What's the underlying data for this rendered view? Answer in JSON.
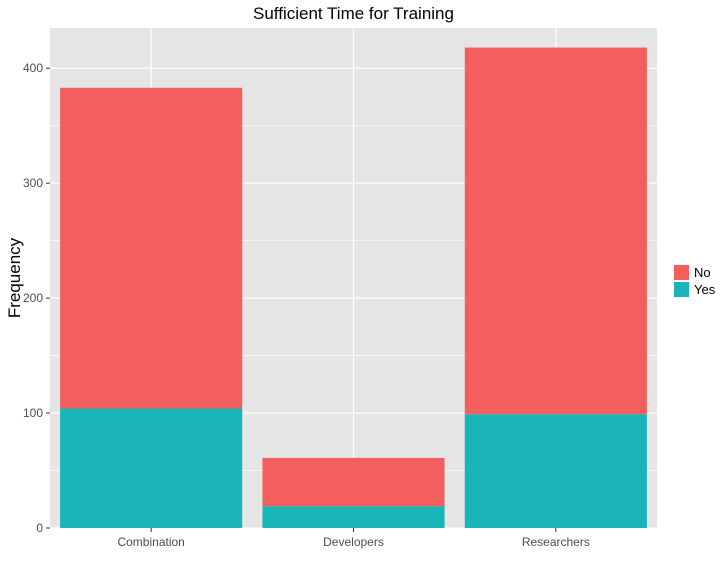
{
  "chart_data": {
    "type": "bar",
    "stacked": true,
    "title": "Sufficient Time for Training",
    "xlabel": "",
    "ylabel": "Frequency",
    "categories": [
      "Combination",
      "Developers",
      "Researchers"
    ],
    "series": [
      {
        "name": "Yes",
        "values": [
          104,
          19,
          99
        ],
        "color": "#19B4B8"
      },
      {
        "name": "No",
        "values": [
          279,
          42,
          319
        ],
        "color": "#F25F5C"
      }
    ],
    "ylim": [
      0,
      435
    ],
    "yticks": [
      0,
      100,
      200,
      300,
      400
    ],
    "legend": {
      "position": "right",
      "order": [
        "No",
        "Yes"
      ]
    },
    "grid": true,
    "panel_background": "#E5E5E5",
    "grid_color": "#FFFFFF"
  }
}
